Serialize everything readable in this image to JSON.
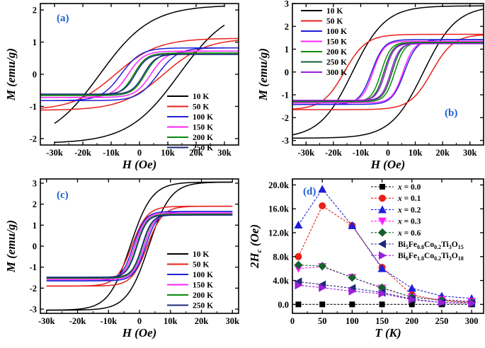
{
  "colors": {
    "black": "#000000",
    "red": "#e8201a",
    "blue": "#1f1fd8",
    "magenta": "#ff22ff",
    "green": "#0a8a0a",
    "navy": "#1c2a7a",
    "purple": "#9a1fdc",
    "darkgreen": "#16602e",
    "panel_label": "#1a5fd6"
  },
  "chart_data": [
    {
      "type": "line",
      "panel": "(a)",
      "xlabel": "H (Oe)",
      "ylabel": "M (emu/g)",
      "xlim": [
        -35000,
        35000
      ],
      "ylim": [
        -2.2,
        2.2
      ],
      "xticks": [
        -30000,
        -20000,
        -10000,
        0,
        10000,
        20000,
        30000
      ],
      "xticklabels": [
        "-30k",
        "-20k",
        "-10k",
        "0",
        "10k",
        "20k",
        "30k"
      ],
      "yticks": [
        -2,
        -1,
        0,
        1,
        2
      ],
      "yticklabels": [
        "-2",
        "-1",
        "0",
        "1",
        "2"
      ],
      "legend_position": "bottom-right",
      "series": [
        {
          "name": "10 K",
          "color": "black",
          "Ms": 2.15,
          "Hc": 14000,
          "a": 18000,
          "Hmax": 30000
        },
        {
          "name": "50 K",
          "color": "red",
          "Ms": 1.12,
          "Hc": 8500,
          "a": 15000,
          "Hmax": 35000
        },
        {
          "name": "100 K",
          "color": "blue",
          "Ms": 0.82,
          "Hc": 6500,
          "a": 7000,
          "Hmax": 35000
        },
        {
          "name": "150 K",
          "color": "magenta",
          "Ms": 0.72,
          "Hc": 4000,
          "a": 5500,
          "Hmax": 35000
        },
        {
          "name": "200 K",
          "color": "green",
          "Ms": 0.66,
          "Hc": 2000,
          "a": 4500,
          "Hmax": 35000
        },
        {
          "name": "250 K",
          "color": "navy",
          "Ms": 0.62,
          "Hc": 1500,
          "a": 4200,
          "Hmax": 35000
        }
      ]
    },
    {
      "type": "line",
      "panel": "(b)",
      "xlabel": "H (Oe)",
      "ylabel": "M (emu/g)",
      "xlim": [
        -35000,
        35000
      ],
      "ylim": [
        -3.2,
        3.0
      ],
      "xticks": [
        -30000,
        -20000,
        -10000,
        0,
        10000,
        20000,
        30000
      ],
      "xticklabels": [
        "-30k",
        "-20k",
        "-10k",
        "0",
        "10k",
        "20k",
        "30k"
      ],
      "yticks": [
        -3,
        -2,
        -1,
        0,
        1,
        2,
        3
      ],
      "yticklabels": [
        "-3",
        "-2",
        "-1",
        "0",
        "1",
        "2",
        "3"
      ],
      "legend_position": "top-left",
      "series": [
        {
          "name": "10 K",
          "color": "black",
          "Ms": 2.9,
          "Hc": 13000,
          "a": 12000,
          "Hmax": 35000
        },
        {
          "name": "50 K",
          "color": "red",
          "Ms": 1.65,
          "Hc": 16000,
          "a": 8000,
          "Hmax": 35000
        },
        {
          "name": "100 K",
          "color": "blue",
          "Ms": 1.42,
          "Hc": 6000,
          "a": 4500,
          "Hmax": 35000
        },
        {
          "name": "150 K",
          "color": "magenta",
          "Ms": 1.35,
          "Hc": 5500,
          "a": 4000,
          "Hmax": 35000
        },
        {
          "name": "200 K",
          "color": "green",
          "Ms": 1.3,
          "Hc": 2500,
          "a": 3500,
          "Hmax": 35000
        },
        {
          "name": "250 K",
          "color": "darkgreen",
          "Ms": 1.27,
          "Hc": 1500,
          "a": 3300,
          "Hmax": 35000
        },
        {
          "name": "300 K",
          "color": "purple",
          "Ms": 1.24,
          "Hc": 1000,
          "a": 3200,
          "Hmax": 35000
        }
      ]
    },
    {
      "type": "line",
      "panel": "(c)",
      "xlabel": "H (Oe)",
      "ylabel": "M (emu/g)",
      "xlim": [
        -32000,
        32000
      ],
      "ylim": [
        -3.2,
        3.2
      ],
      "xticks": [
        -30000,
        -20000,
        -10000,
        0,
        10000,
        20000,
        30000
      ],
      "xticklabels": [
        "-30k",
        "-20k",
        "-10k",
        "0",
        "10k",
        "20k",
        "30k"
      ],
      "yticks": [
        -3,
        -2,
        -1,
        0,
        1,
        2,
        3
      ],
      "yticklabels": [
        "-3",
        "-2",
        "-1",
        "0",
        "1",
        "2",
        "3"
      ],
      "legend_position": "bottom-right",
      "series": [
        {
          "name": "10 K",
          "color": "black",
          "Ms": 3.05,
          "Hc": 3000,
          "a": 7000,
          "Hmax": 30000
        },
        {
          "name": "50 K",
          "color": "red",
          "Ms": 1.9,
          "Hc": 2500,
          "a": 5000,
          "Hmax": 30000
        },
        {
          "name": "100 K",
          "color": "blue",
          "Ms": 1.65,
          "Hc": 2000,
          "a": 3800,
          "Hmax": 30000
        },
        {
          "name": "150 K",
          "color": "magenta",
          "Ms": 1.58,
          "Hc": 1500,
          "a": 3500,
          "Hmax": 30000
        },
        {
          "name": "200 K",
          "color": "green",
          "Ms": 1.52,
          "Hc": 1000,
          "a": 3300,
          "Hmax": 30000
        },
        {
          "name": "250 K",
          "color": "navy",
          "Ms": 1.48,
          "Hc": 800,
          "a": 3200,
          "Hmax": 30000
        }
      ]
    },
    {
      "type": "scatter",
      "panel": "(d)",
      "xlabel": "T (K)",
      "ylabel": "2Hc (Oe)",
      "xlim": [
        0,
        320
      ],
      "ylim": [
        -1500,
        21000
      ],
      "xticks": [
        0,
        50,
        100,
        150,
        200,
        250,
        300
      ],
      "xticklabels": [
        "0",
        "50",
        "100",
        "150",
        "200",
        "250",
        "300"
      ],
      "yticks": [
        0,
        4000,
        8000,
        12000,
        16000,
        20000
      ],
      "yticklabels": [
        "0.0",
        "4.0k",
        "8.0k",
        "12.0k",
        "16.0k",
        "20.0k"
      ],
      "legend_position": "top-right",
      "x": [
        10,
        50,
        100,
        150,
        200,
        250,
        300
      ],
      "series": [
        {
          "name": "x = 0.0",
          "label_var": "x",
          "label_val": "= 0.0",
          "color": "black",
          "marker": "square",
          "values": [
            0,
            0,
            0,
            0,
            0,
            0,
            0
          ]
        },
        {
          "name": "x = 0.1",
          "label_var": "x",
          "label_val": "= 0.1",
          "color": "red",
          "marker": "circle",
          "values": [
            8000,
            16500,
            13200,
            6200,
            1600,
            600,
            300
          ]
        },
        {
          "name": "x = 0.2",
          "label_var": "x",
          "label_val": "= 0.2",
          "color": "blue",
          "marker": "triangle-up",
          "values": [
            13300,
            19300,
            13200,
            6000,
            2700,
            1400,
            1000
          ]
        },
        {
          "name": "x = 0.3",
          "label_var": "x",
          "label_val": "= 0.3",
          "color": "magenta",
          "marker": "triangle-down",
          "values": [
            6000,
            6300,
            4500,
            2700,
            1200,
            800,
            500
          ]
        },
        {
          "name": "x = 0.6",
          "label_var": "x",
          "label_val": "= 0.6",
          "color": "darkgreen",
          "marker": "diamond",
          "values": [
            6600,
            6400,
            4500,
            2800,
            1200,
            700,
            400
          ]
        },
        {
          "name": "Bi5Fe0.8Co0.2Ti3O15",
          "label_parts": [
            [
              "Bi",
              "5",
              "Fe",
              "0.8",
              "Co",
              "0.2",
              "Ti",
              "3",
              "O",
              "15"
            ]
          ],
          "color": "navy",
          "marker": "triangle-left",
          "values": [
            3800,
            3300,
            2700,
            2000,
            900,
            300,
            200
          ]
        },
        {
          "name": "Bi6Fe1.8Co0.2Ti3O18",
          "label_parts": [
            [
              "Bi",
              "6",
              "Fe",
              "1.8",
              "Co",
              "0.2",
              "Ti",
              "3",
              "O",
              "18"
            ]
          ],
          "color": "purple",
          "marker": "triangle-right",
          "values": [
            3200,
            2800,
            2200,
            1800,
            800,
            300,
            200
          ]
        }
      ]
    }
  ]
}
